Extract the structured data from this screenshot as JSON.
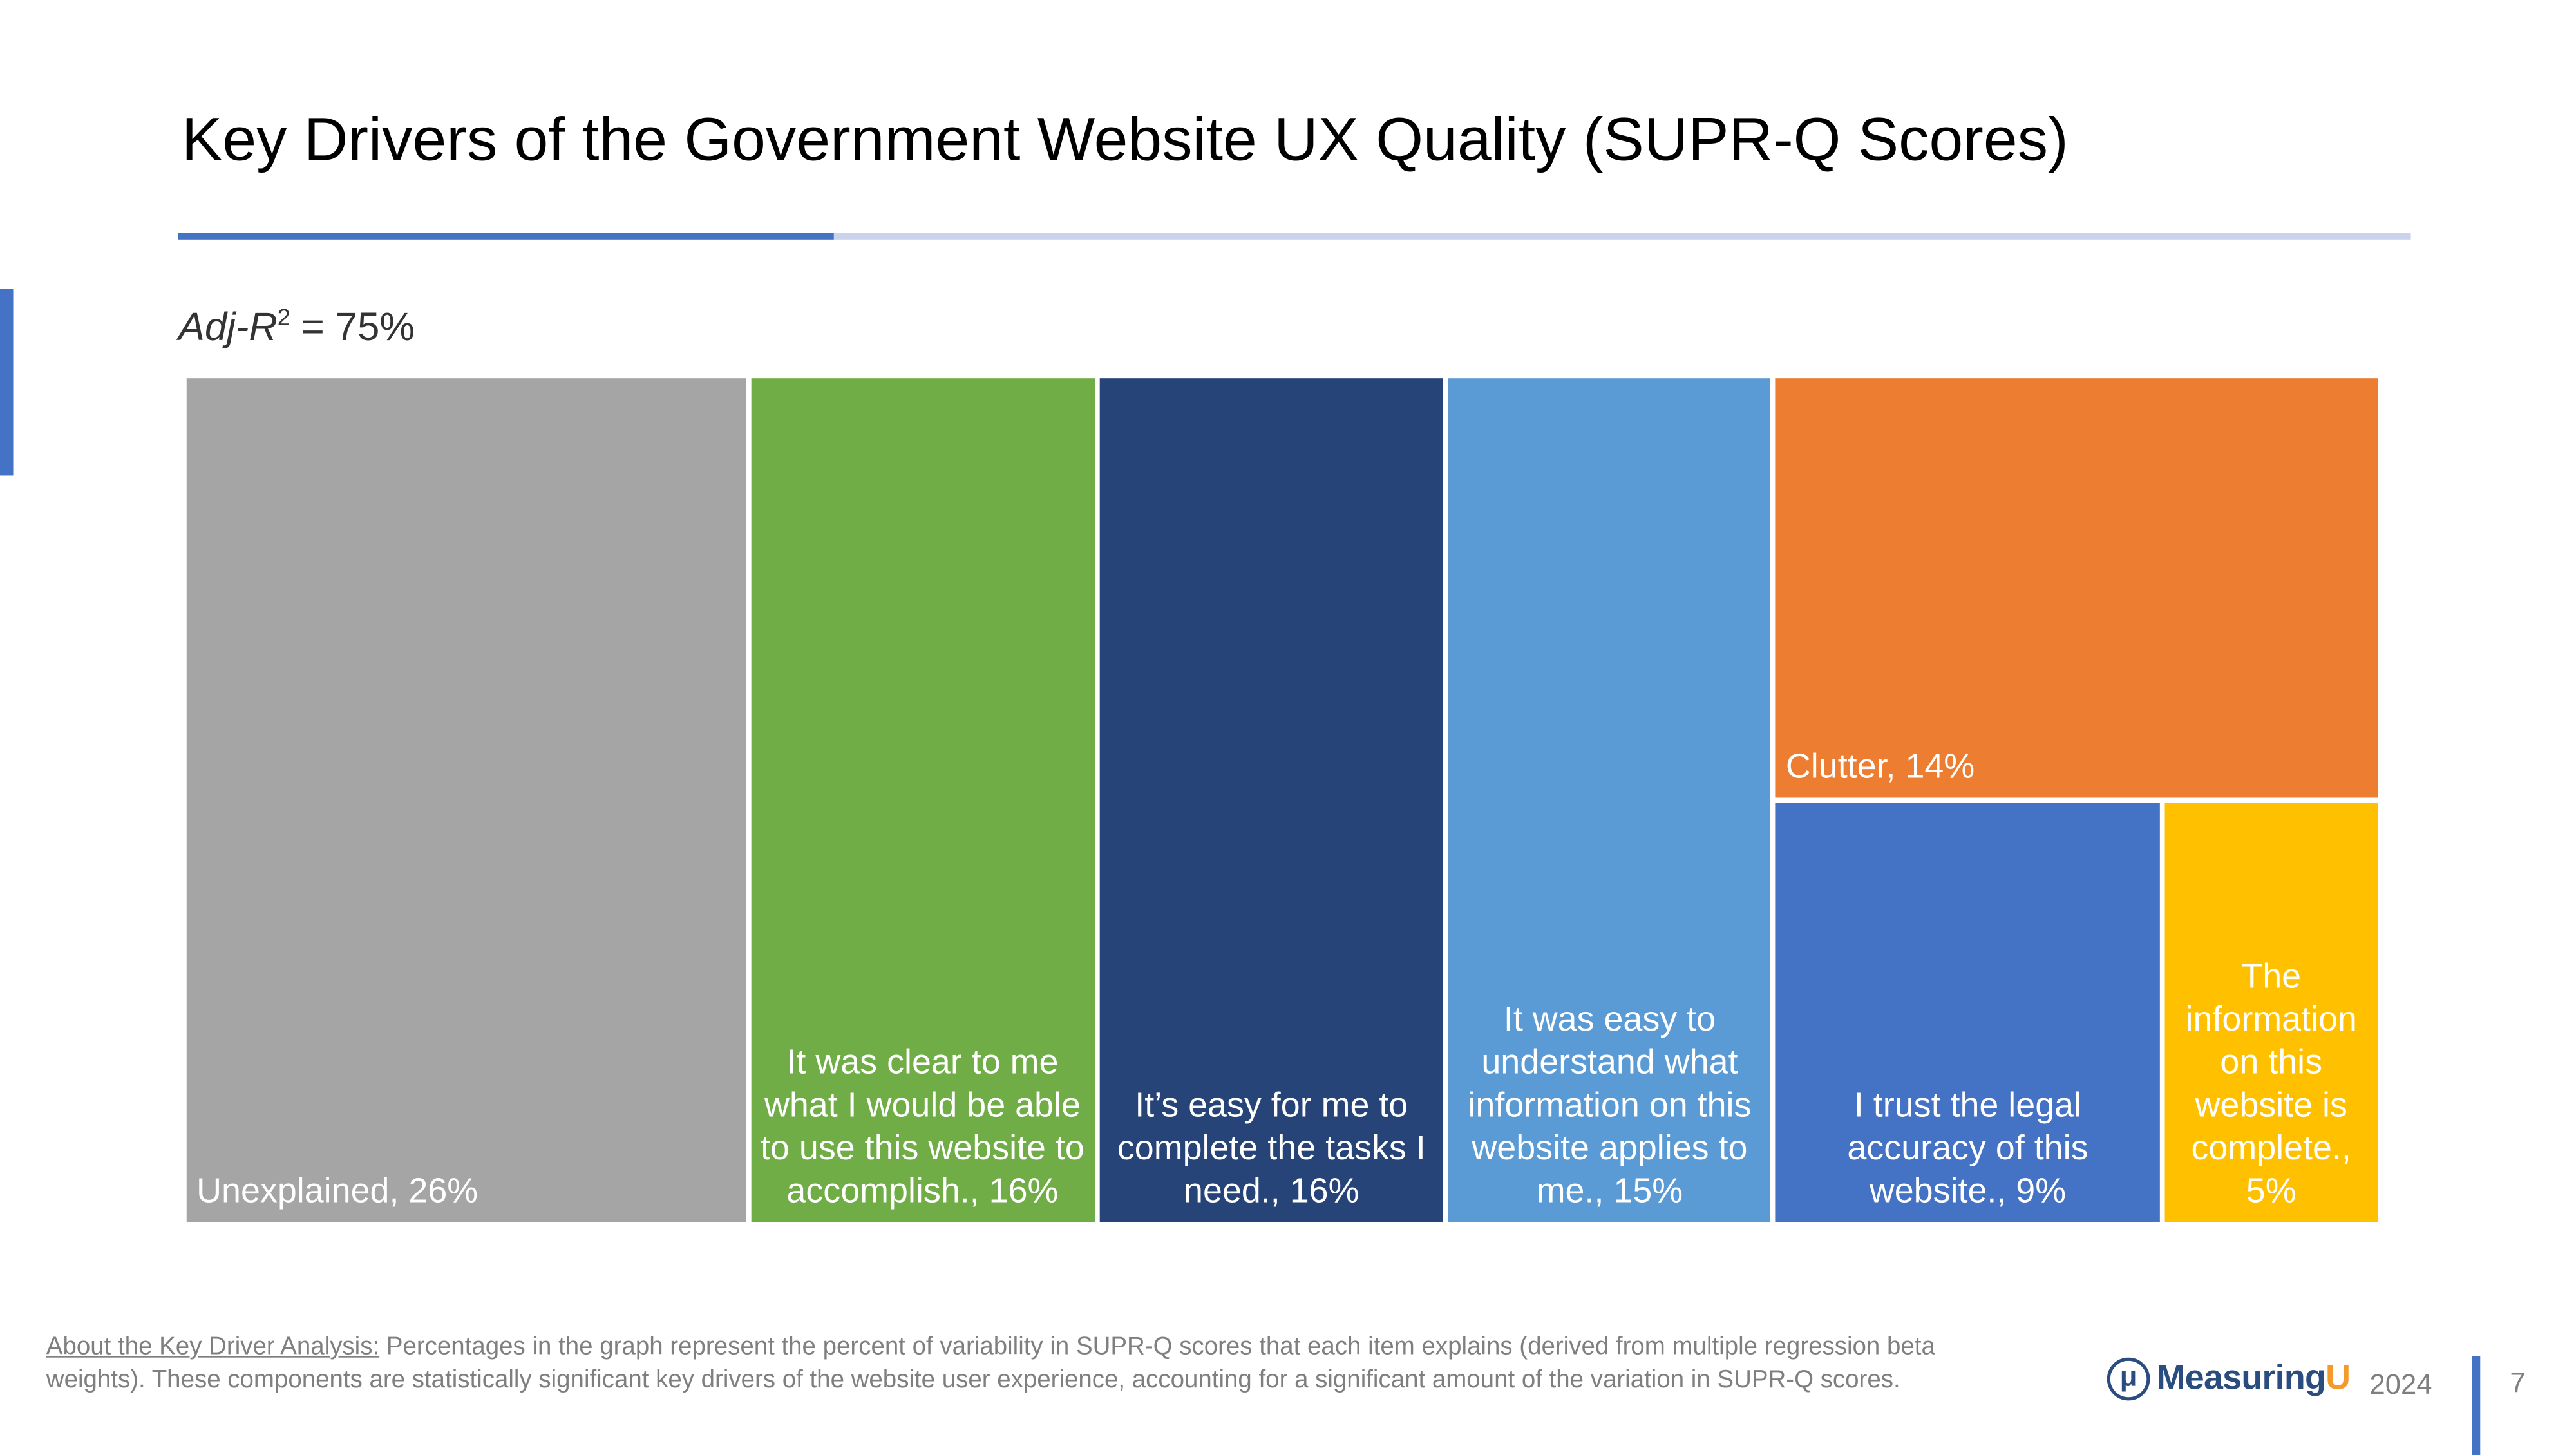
{
  "header": {
    "title": "Key Drivers of the Government Website UX Quality (SUPR-Q Scores)",
    "accent_color": "#4472C4"
  },
  "adj_r2": {
    "label": "Adj-R",
    "superscript": "2",
    "value_text": " = 75%"
  },
  "chart_data": {
    "type": "treemap",
    "title": "",
    "unit": "%",
    "items": [
      {
        "label": "Unexplained, 26%",
        "name": "Unexplained",
        "value": 26,
        "color": "#A5A5A5"
      },
      {
        "label": "It was clear to me what I would be able to use this website to accomplish., 16%",
        "name": "It was clear to me what I would be able to use this website to accomplish.",
        "value": 16,
        "color": "#70AD47"
      },
      {
        "label": "It’s easy for me to complete the tasks I need., 16%",
        "name": "It’s easy for me to complete the tasks I need.",
        "value": 16,
        "color": "#264478"
      },
      {
        "label": "It was easy to understand what information on this website applies to me., 15%",
        "name": "It was easy to understand what information on this website applies to me.",
        "value": 15,
        "color": "#5B9BD5"
      },
      {
        "label": "Clutter, 14%",
        "name": "Clutter",
        "value": 14,
        "color": "#ED7D31"
      },
      {
        "label": "I trust the legal accuracy of this website., 9%",
        "name": "I trust the legal accuracy of this website.",
        "value": 9,
        "color": "#4472C4"
      },
      {
        "label": "The information on this website is complete., 5%",
        "name": "The information on this website is complete.",
        "value": 5,
        "color": "#FFC000"
      }
    ]
  },
  "footer": {
    "note_heading": "About the Key Driver Analysis:",
    "note_body": " Percentages in the graph represent the percent of variability in SUPR-Q scores that each item explains (derived from multiple regression beta weights). These components are statistically significant key drivers of the website user experience, accounting for a significant amount of the variation in SUPR-Q scores.",
    "logo_text": "Measuring",
    "logo_u": "U",
    "year": "2024",
    "page_number": "7"
  }
}
